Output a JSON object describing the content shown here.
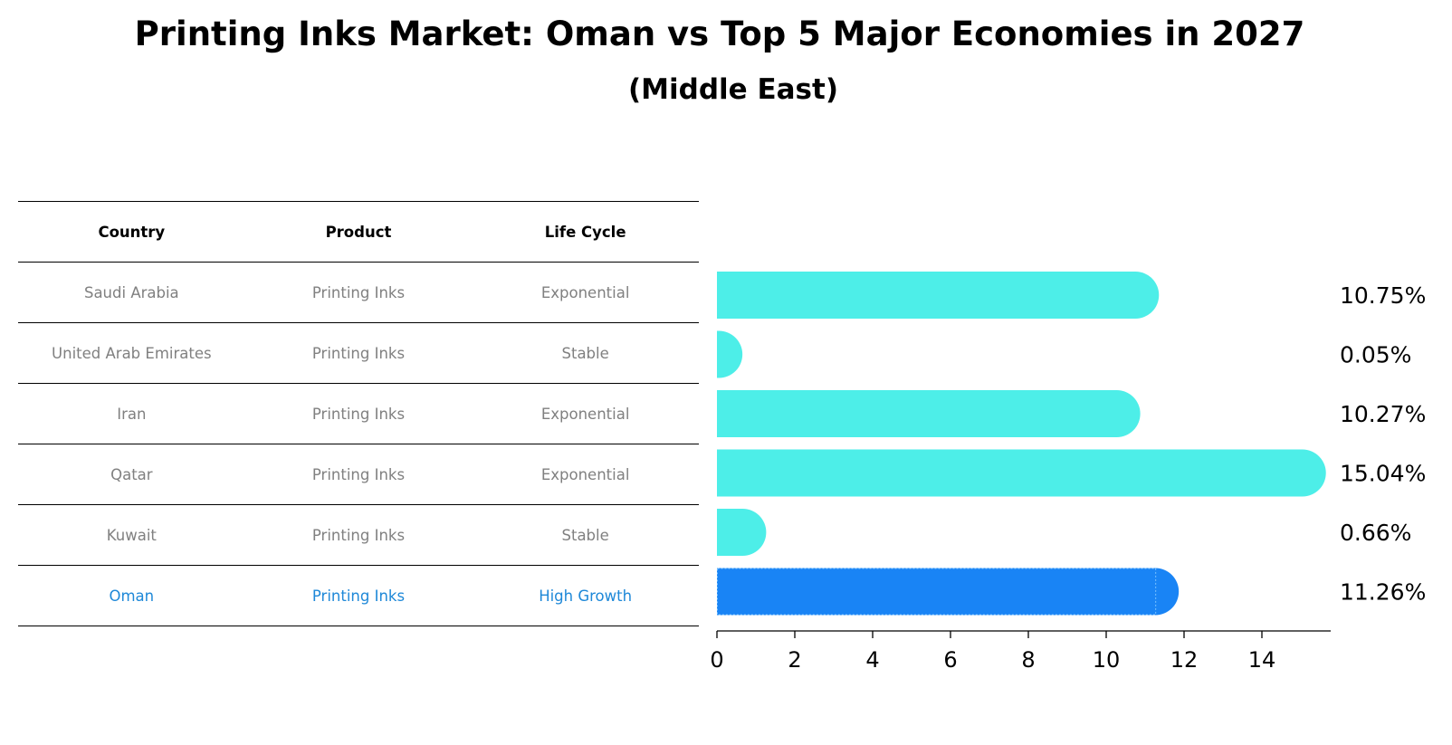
{
  "title": "Printing Inks Market: Oman vs Top 5 Major Economies in 2027",
  "subtitle": "(Middle East)",
  "table": {
    "headers": [
      "Country",
      "Product",
      "Life Cycle"
    ],
    "rows": [
      {
        "country": "Saudi Arabia",
        "product": "Printing Inks",
        "life_cycle": "Exponential"
      },
      {
        "country": "United Arab Emirates",
        "product": "Printing Inks",
        "life_cycle": "Stable"
      },
      {
        "country": "Iran",
        "product": "Printing Inks",
        "life_cycle": "Exponential"
      },
      {
        "country": "Qatar",
        "product": "Printing Inks",
        "life_cycle": "Exponential"
      },
      {
        "country": "Kuwait",
        "product": "Printing Inks",
        "life_cycle": "Stable"
      },
      {
        "country": "Oman",
        "product": "Printing Inks",
        "life_cycle": "High Growth"
      }
    ]
  },
  "chart_data": {
    "type": "bar",
    "orientation": "horizontal",
    "title": "Printing Inks Market: Oman vs Top 5 Major Economies in 2027",
    "subtitle": "(Middle East)",
    "categories": [
      "Saudi Arabia",
      "United Arab Emirates",
      "Iran",
      "Qatar",
      "Kuwait",
      "Oman"
    ],
    "values": [
      10.75,
      0.05,
      10.27,
      15.04,
      0.66,
      11.26
    ],
    "value_labels": [
      "10.75%",
      "0.05%",
      "10.27%",
      "15.04%",
      "0.66%",
      "11.26%"
    ],
    "highlight": "Oman",
    "xlim": [
      0,
      15.8
    ],
    "xticks": [
      0,
      2,
      4,
      6,
      8,
      10,
      12,
      14
    ],
    "colors": {
      "default": "#4deee8",
      "highlight": "#1984f5"
    },
    "grid": false,
    "xlabel": "",
    "ylabel": ""
  }
}
